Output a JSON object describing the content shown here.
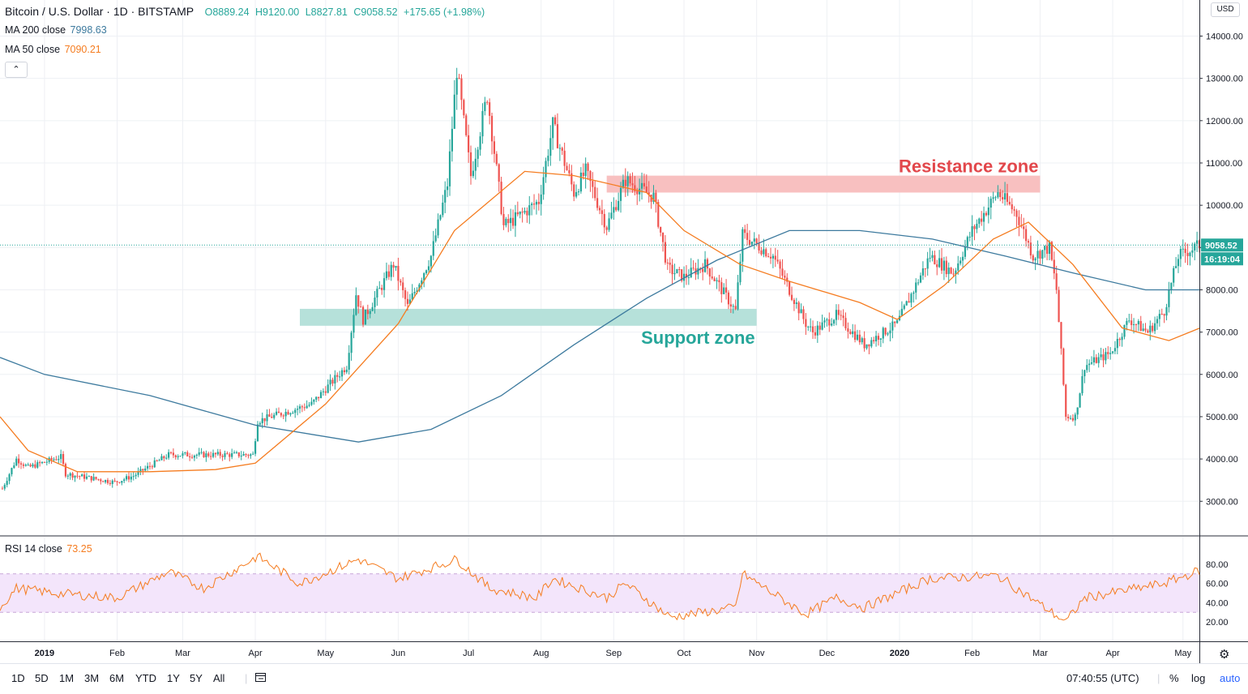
{
  "header": {
    "symbol": "Bitcoin / U.S. Dollar · 1D · BITSTAMP",
    "open": "O8889.24",
    "high": "H9120.00",
    "low": "L8827.81",
    "close": "C9058.52",
    "change": "+175.65 (+1.98%)",
    "collapse_icon": "chevron-up-icon"
  },
  "indicators": {
    "ma200": {
      "label": "MA 200 close",
      "value": "7998.63",
      "color": "#3d7a9e"
    },
    "ma50": {
      "label": "MA 50 close",
      "value": "7090.21",
      "color": "#f57c20"
    },
    "rsi": {
      "label": "RSI 14 close",
      "value": "73.25",
      "color": "#f57c20"
    }
  },
  "price_axis": {
    "currency": "USD",
    "ticks": [
      "14000.00",
      "13000.00",
      "12000.00",
      "11000.00",
      "10000.00",
      "9000.00",
      "8000.00",
      "7000.00",
      "6000.00",
      "5000.00",
      "4000.00",
      "3000.00"
    ],
    "last_price_label": "9058.52",
    "countdown_label": "16:19:04",
    "tag_color": "#26a69a"
  },
  "rsi_axis": {
    "ticks": [
      "80.00",
      "60.00",
      "40.00",
      "20.00"
    ]
  },
  "time_axis": {
    "labels": [
      "2019",
      "Feb",
      "Mar",
      "Apr",
      "May",
      "Jun",
      "Jul",
      "Aug",
      "Sep",
      "Oct",
      "Nov",
      "Dec",
      "2020",
      "Feb",
      "Mar",
      "Apr",
      "May"
    ]
  },
  "annotations": {
    "resistance": {
      "label": "Resistance zone",
      "color": "#e2474b",
      "fill": "#f8bdbd"
    },
    "support": {
      "label": "Support zone",
      "color": "#26a69a",
      "fill": "#b2dfd8"
    }
  },
  "toolbar": {
    "ranges": [
      "1D",
      "5D",
      "1M",
      "3M",
      "6M",
      "YTD",
      "1Y",
      "5Y",
      "All"
    ],
    "compare_icon": "calendar-goto-icon",
    "time": "07:40:55 (UTC)",
    "percent": "%",
    "log": "log",
    "auto": "auto",
    "settings_icon": "gear-icon"
  },
  "chart_data": {
    "type": "candlestick",
    "title": "Bitcoin / U.S. Dollar · 1D · BITSTAMP",
    "x_range": [
      "2018-12-13",
      "2020-05-08"
    ],
    "ylim": [
      2200,
      14700
    ],
    "y_scale": "linear",
    "grid": true,
    "price_path": [
      [
        "2018-12-14",
        3300
      ],
      [
        "2018-12-20",
        4000
      ],
      [
        "2018-12-25",
        3800
      ],
      [
        "2019-01-08",
        4050
      ],
      [
        "2019-01-10",
        3650
      ],
      [
        "2019-01-31",
        3450
      ],
      [
        "2019-02-08",
        3600
      ],
      [
        "2019-02-23",
        4100
      ],
      [
        "2019-03-31",
        4100
      ],
      [
        "2019-04-02",
        4900
      ],
      [
        "2019-04-25",
        5300
      ],
      [
        "2019-05-10",
        6200
      ],
      [
        "2019-05-14",
        7900
      ],
      [
        "2019-05-17",
        7300
      ],
      [
        "2019-05-30",
        8600
      ],
      [
        "2019-06-05",
        7600
      ],
      [
        "2019-06-15",
        8800
      ],
      [
        "2019-06-22",
        10500
      ],
      [
        "2019-06-26",
        13200
      ],
      [
        "2019-07-02",
        10700
      ],
      [
        "2019-07-09",
        12600
      ],
      [
        "2019-07-16",
        9500
      ],
      [
        "2019-07-24",
        9800
      ],
      [
        "2019-07-31",
        10100
      ],
      [
        "2019-08-06",
        11900
      ],
      [
        "2019-08-15",
        10300
      ],
      [
        "2019-08-20",
        10800
      ],
      [
        "2019-08-29",
        9500
      ],
      [
        "2019-09-06",
        10600
      ],
      [
        "2019-09-18",
        10200
      ],
      [
        "2019-09-24",
        8500
      ],
      [
        "2019-10-01",
        8300
      ],
      [
        "2019-10-10",
        8600
      ],
      [
        "2019-10-23",
        7500
      ],
      [
        "2019-10-26",
        9300
      ],
      [
        "2019-11-08",
        8800
      ],
      [
        "2019-11-22",
        7200
      ],
      [
        "2019-11-25",
        7000
      ],
      [
        "2019-12-05",
        7400
      ],
      [
        "2019-12-17",
        6700
      ],
      [
        "2019-12-31",
        7200
      ],
      [
        "2020-01-14",
        8800
      ],
      [
        "2020-01-24",
        8400
      ],
      [
        "2020-02-01",
        9400
      ],
      [
        "2020-02-12",
        10300
      ],
      [
        "2020-02-20",
        9800
      ],
      [
        "2020-02-27",
        8800
      ],
      [
        "2020-03-05",
        9000
      ],
      [
        "2020-03-08",
        8000
      ],
      [
        "2020-03-12",
        5000
      ],
      [
        "2020-03-16",
        5000
      ],
      [
        "2020-03-20",
        6200
      ],
      [
        "2020-03-31",
        6500
      ],
      [
        "2020-04-08",
        7300
      ],
      [
        "2020-04-16",
        7000
      ],
      [
        "2020-04-23",
        7500
      ],
      [
        "2020-04-29",
        8800
      ],
      [
        "2020-05-08",
        9058.52
      ]
    ],
    "last_candle": {
      "open": 8889.24,
      "high": 9120.0,
      "low": 8827.81,
      "close": 9058.52
    },
    "ma200_path": [
      [
        "2018-12-13",
        6400
      ],
      [
        "2019-01-01",
        6000
      ],
      [
        "2019-02-15",
        5500
      ],
      [
        "2019-04-01",
        4800
      ],
      [
        "2019-05-15",
        4400
      ],
      [
        "2019-06-15",
        4700
      ],
      [
        "2019-07-15",
        5500
      ],
      [
        "2019-08-15",
        6700
      ],
      [
        "2019-09-15",
        7800
      ],
      [
        "2019-10-15",
        8700
      ],
      [
        "2019-11-15",
        9400
      ],
      [
        "2019-12-15",
        9400
      ],
      [
        "2020-01-15",
        9200
      ],
      [
        "2020-02-15",
        8800
      ],
      [
        "2020-03-15",
        8400
      ],
      [
        "2020-04-15",
        8000
      ],
      [
        "2020-05-08",
        8000
      ]
    ],
    "ma50_path": [
      [
        "2018-12-13",
        5000
      ],
      [
        "2018-12-25",
        4200
      ],
      [
        "2019-01-15",
        3700
      ],
      [
        "2019-02-15",
        3700
      ],
      [
        "2019-03-15",
        3750
      ],
      [
        "2019-04-01",
        3900
      ],
      [
        "2019-05-01",
        5300
      ],
      [
        "2019-06-01",
        7200
      ],
      [
        "2019-06-25",
        9400
      ],
      [
        "2019-07-25",
        10800
      ],
      [
        "2019-08-15",
        10700
      ],
      [
        "2019-09-15",
        10300
      ],
      [
        "2019-10-01",
        9400
      ],
      [
        "2019-10-25",
        8600
      ],
      [
        "2019-11-15",
        8200
      ],
      [
        "2019-12-15",
        7700
      ],
      [
        "2019-12-31",
        7300
      ],
      [
        "2020-01-20",
        8100
      ],
      [
        "2020-02-10",
        9200
      ],
      [
        "2020-02-25",
        9600
      ],
      [
        "2020-03-15",
        8600
      ],
      [
        "2020-04-05",
        7100
      ],
      [
        "2020-04-25",
        6800
      ],
      [
        "2020-05-08",
        7090
      ]
    ],
    "rsi_path": [
      [
        "2018-12-13",
        35
      ],
      [
        "2018-12-20",
        55
      ],
      [
        "2019-01-05",
        50
      ],
      [
        "2019-02-01",
        45
      ],
      [
        "2019-02-23",
        72
      ],
      [
        "2019-03-10",
        55
      ],
      [
        "2019-04-02",
        88
      ],
      [
        "2019-04-20",
        60
      ],
      [
        "2019-05-15",
        85
      ],
      [
        "2019-06-01",
        65
      ],
      [
        "2019-06-26",
        85
      ],
      [
        "2019-07-10",
        55
      ],
      [
        "2019-07-30",
        45
      ],
      [
        "2019-08-06",
        65
      ],
      [
        "2019-08-29",
        45
      ],
      [
        "2019-09-06",
        60
      ],
      [
        "2019-09-25",
        25
      ],
      [
        "2019-10-23",
        35
      ],
      [
        "2019-10-26",
        70
      ],
      [
        "2019-11-22",
        28
      ],
      [
        "2019-12-05",
        45
      ],
      [
        "2019-12-17",
        35
      ],
      [
        "2020-01-14",
        65
      ],
      [
        "2020-02-12",
        68
      ],
      [
        "2020-03-12",
        20
      ],
      [
        "2020-03-20",
        45
      ],
      [
        "2020-04-23",
        60
      ],
      [
        "2020-05-08",
        73.25
      ]
    ],
    "rsi_band": [
      30,
      70
    ],
    "zones": [
      {
        "label": "Resistance zone",
        "from_date": "2019-08-29",
        "to_date": "2020-03-01",
        "low": 10300,
        "high": 10700
      },
      {
        "label": "Support zone",
        "from_date": "2019-04-20",
        "to_date": "2019-11-01",
        "low": 7150,
        "high": 7550
      }
    ]
  }
}
